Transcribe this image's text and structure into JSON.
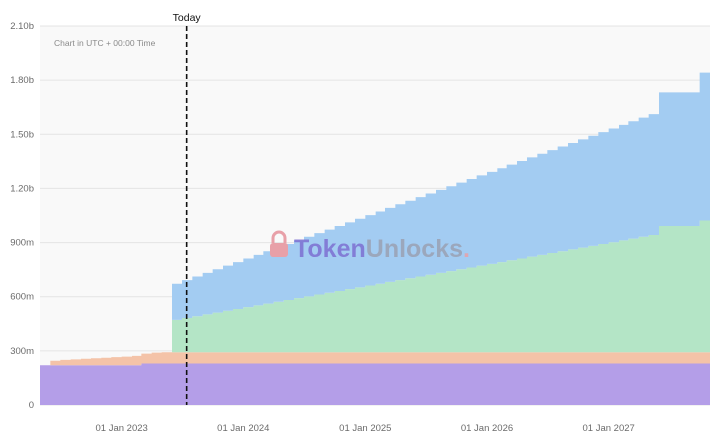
{
  "chart_data": {
    "type": "area",
    "stacked": true,
    "step": true,
    "note": "Chart in UTC + 00:00 Time",
    "today_label": "Today",
    "today_date": "2023-07-15",
    "watermark": "TokenUnlocks.",
    "x_range": [
      "2022-05-01",
      "2027-11-01"
    ],
    "y_range": [
      0,
      2100000000
    ],
    "y_ticks": [
      {
        "value": 0,
        "label": "0"
      },
      {
        "value": 300000000,
        "label": "300m"
      },
      {
        "value": 600000000,
        "label": "600m"
      },
      {
        "value": 900000000,
        "label": "900m"
      },
      {
        "value": 1200000000,
        "label": "1.20b"
      },
      {
        "value": 1500000000,
        "label": "1.50b"
      },
      {
        "value": 1800000000,
        "label": "1.80b"
      },
      {
        "value": 2100000000,
        "label": "2.10b"
      }
    ],
    "x_ticks": [
      {
        "date": "2023-01-01",
        "label": "01 Jan 2023"
      },
      {
        "date": "2024-01-01",
        "label": "01 Jan 2024"
      },
      {
        "date": "2025-01-01",
        "label": "01 Jan 2025"
      },
      {
        "date": "2026-01-01",
        "label": "01 Jan 2026"
      },
      {
        "date": "2027-01-01",
        "label": "01 Jan 2027"
      }
    ],
    "grid": true,
    "background": "#f9f9f9",
    "series": [
      {
        "color": "#b49ee8",
        "points": [
          [
            "2022-05-01",
            220000000
          ],
          [
            "2023-03-01",
            230000000
          ],
          [
            "2023-06-01",
            230000000
          ],
          [
            "2027-10-01",
            230000000
          ]
        ]
      },
      {
        "color": "#f4c3a8",
        "points": [
          [
            "2022-05-01",
            0
          ],
          [
            "2022-06-01",
            25000000
          ],
          [
            "2022-07-01",
            30000000
          ],
          [
            "2022-08-01",
            33000000
          ],
          [
            "2022-09-01",
            36000000
          ],
          [
            "2022-10-01",
            39000000
          ],
          [
            "2022-11-01",
            42000000
          ],
          [
            "2022-12-01",
            45000000
          ],
          [
            "2023-01-01",
            48000000
          ],
          [
            "2023-02-01",
            52000000
          ],
          [
            "2023-03-01",
            55000000
          ],
          [
            "2023-04-01",
            60000000
          ],
          [
            "2023-05-01",
            62000000
          ],
          [
            "2023-06-01",
            62000000
          ],
          [
            "2027-10-01",
            62000000
          ]
        ]
      },
      {
        "color": "#b4e5c6",
        "points": [
          [
            "2022-05-01",
            0
          ],
          [
            "2023-05-31",
            0
          ],
          [
            "2023-06-01",
            180000000
          ],
          [
            "2023-07-01",
            190000000
          ],
          [
            "2023-08-01",
            200000000
          ],
          [
            "2023-09-01",
            210000000
          ],
          [
            "2023-10-01",
            220000000
          ],
          [
            "2023-11-01",
            230000000
          ],
          [
            "2023-12-01",
            240000000
          ],
          [
            "2024-01-01",
            250000000
          ],
          [
            "2024-02-01",
            260000000
          ],
          [
            "2024-03-01",
            270000000
          ],
          [
            "2024-04-01",
            280000000
          ],
          [
            "2024-05-01",
            290000000
          ],
          [
            "2024-06-01",
            300000000
          ],
          [
            "2024-07-01",
            310000000
          ],
          [
            "2024-08-01",
            320000000
          ],
          [
            "2024-09-01",
            330000000
          ],
          [
            "2024-10-01",
            340000000
          ],
          [
            "2024-11-01",
            350000000
          ],
          [
            "2024-12-01",
            360000000
          ],
          [
            "2025-01-01",
            370000000
          ],
          [
            "2025-02-01",
            380000000
          ],
          [
            "2025-03-01",
            390000000
          ],
          [
            "2025-04-01",
            400000000
          ],
          [
            "2025-05-01",
            410000000
          ],
          [
            "2025-06-01",
            420000000
          ],
          [
            "2025-07-01",
            430000000
          ],
          [
            "2025-08-01",
            440000000
          ],
          [
            "2025-09-01",
            450000000
          ],
          [
            "2025-10-01",
            460000000
          ],
          [
            "2025-11-01",
            470000000
          ],
          [
            "2025-12-01",
            480000000
          ],
          [
            "2026-01-01",
            490000000
          ],
          [
            "2026-02-01",
            500000000
          ],
          [
            "2026-03-01",
            510000000
          ],
          [
            "2026-04-01",
            520000000
          ],
          [
            "2026-05-01",
            530000000
          ],
          [
            "2026-06-01",
            540000000
          ],
          [
            "2026-07-01",
            550000000
          ],
          [
            "2026-08-01",
            560000000
          ],
          [
            "2026-09-01",
            570000000
          ],
          [
            "2026-10-01",
            580000000
          ],
          [
            "2026-11-01",
            590000000
          ],
          [
            "2026-12-01",
            600000000
          ],
          [
            "2027-01-01",
            610000000
          ],
          [
            "2027-02-01",
            620000000
          ],
          [
            "2027-03-01",
            630000000
          ],
          [
            "2027-04-01",
            640000000
          ],
          [
            "2027-05-01",
            650000000
          ],
          [
            "2027-06-01",
            700000000
          ],
          [
            "2027-10-01",
            730000000
          ]
        ]
      },
      {
        "color": "#a3ccf2",
        "points": [
          [
            "2022-05-01",
            0
          ],
          [
            "2023-05-31",
            0
          ],
          [
            "2023-06-01",
            200000000
          ],
          [
            "2023-07-01",
            210000000
          ],
          [
            "2023-08-01",
            220000000
          ],
          [
            "2023-09-01",
            230000000
          ],
          [
            "2023-10-01",
            240000000
          ],
          [
            "2023-11-01",
            250000000
          ],
          [
            "2023-12-01",
            260000000
          ],
          [
            "2024-01-01",
            270000000
          ],
          [
            "2024-02-01",
            280000000
          ],
          [
            "2024-03-01",
            290000000
          ],
          [
            "2024-04-01",
            300000000
          ],
          [
            "2024-05-01",
            310000000
          ],
          [
            "2024-06-01",
            320000000
          ],
          [
            "2024-07-01",
            330000000
          ],
          [
            "2024-08-01",
            340000000
          ],
          [
            "2024-09-01",
            350000000
          ],
          [
            "2024-10-01",
            360000000
          ],
          [
            "2024-11-01",
            370000000
          ],
          [
            "2024-12-01",
            380000000
          ],
          [
            "2025-01-01",
            390000000
          ],
          [
            "2025-02-01",
            400000000
          ],
          [
            "2025-03-01",
            410000000
          ],
          [
            "2025-04-01",
            420000000
          ],
          [
            "2025-05-01",
            430000000
          ],
          [
            "2025-06-01",
            440000000
          ],
          [
            "2025-07-01",
            450000000
          ],
          [
            "2025-08-01",
            460000000
          ],
          [
            "2025-09-01",
            470000000
          ],
          [
            "2025-10-01",
            480000000
          ],
          [
            "2025-11-01",
            490000000
          ],
          [
            "2025-12-01",
            500000000
          ],
          [
            "2026-01-01",
            510000000
          ],
          [
            "2026-02-01",
            520000000
          ],
          [
            "2026-03-01",
            530000000
          ],
          [
            "2026-04-01",
            540000000
          ],
          [
            "2026-05-01",
            550000000
          ],
          [
            "2026-06-01",
            560000000
          ],
          [
            "2026-07-01",
            570000000
          ],
          [
            "2026-08-01",
            580000000
          ],
          [
            "2026-09-01",
            590000000
          ],
          [
            "2026-10-01",
            600000000
          ],
          [
            "2026-11-01",
            610000000
          ],
          [
            "2026-12-01",
            620000000
          ],
          [
            "2027-01-01",
            630000000
          ],
          [
            "2027-02-01",
            640000000
          ],
          [
            "2027-03-01",
            650000000
          ],
          [
            "2027-04-01",
            660000000
          ],
          [
            "2027-05-01",
            670000000
          ],
          [
            "2027-06-01",
            740000000
          ],
          [
            "2027-10-01",
            820000000
          ]
        ]
      }
    ]
  }
}
